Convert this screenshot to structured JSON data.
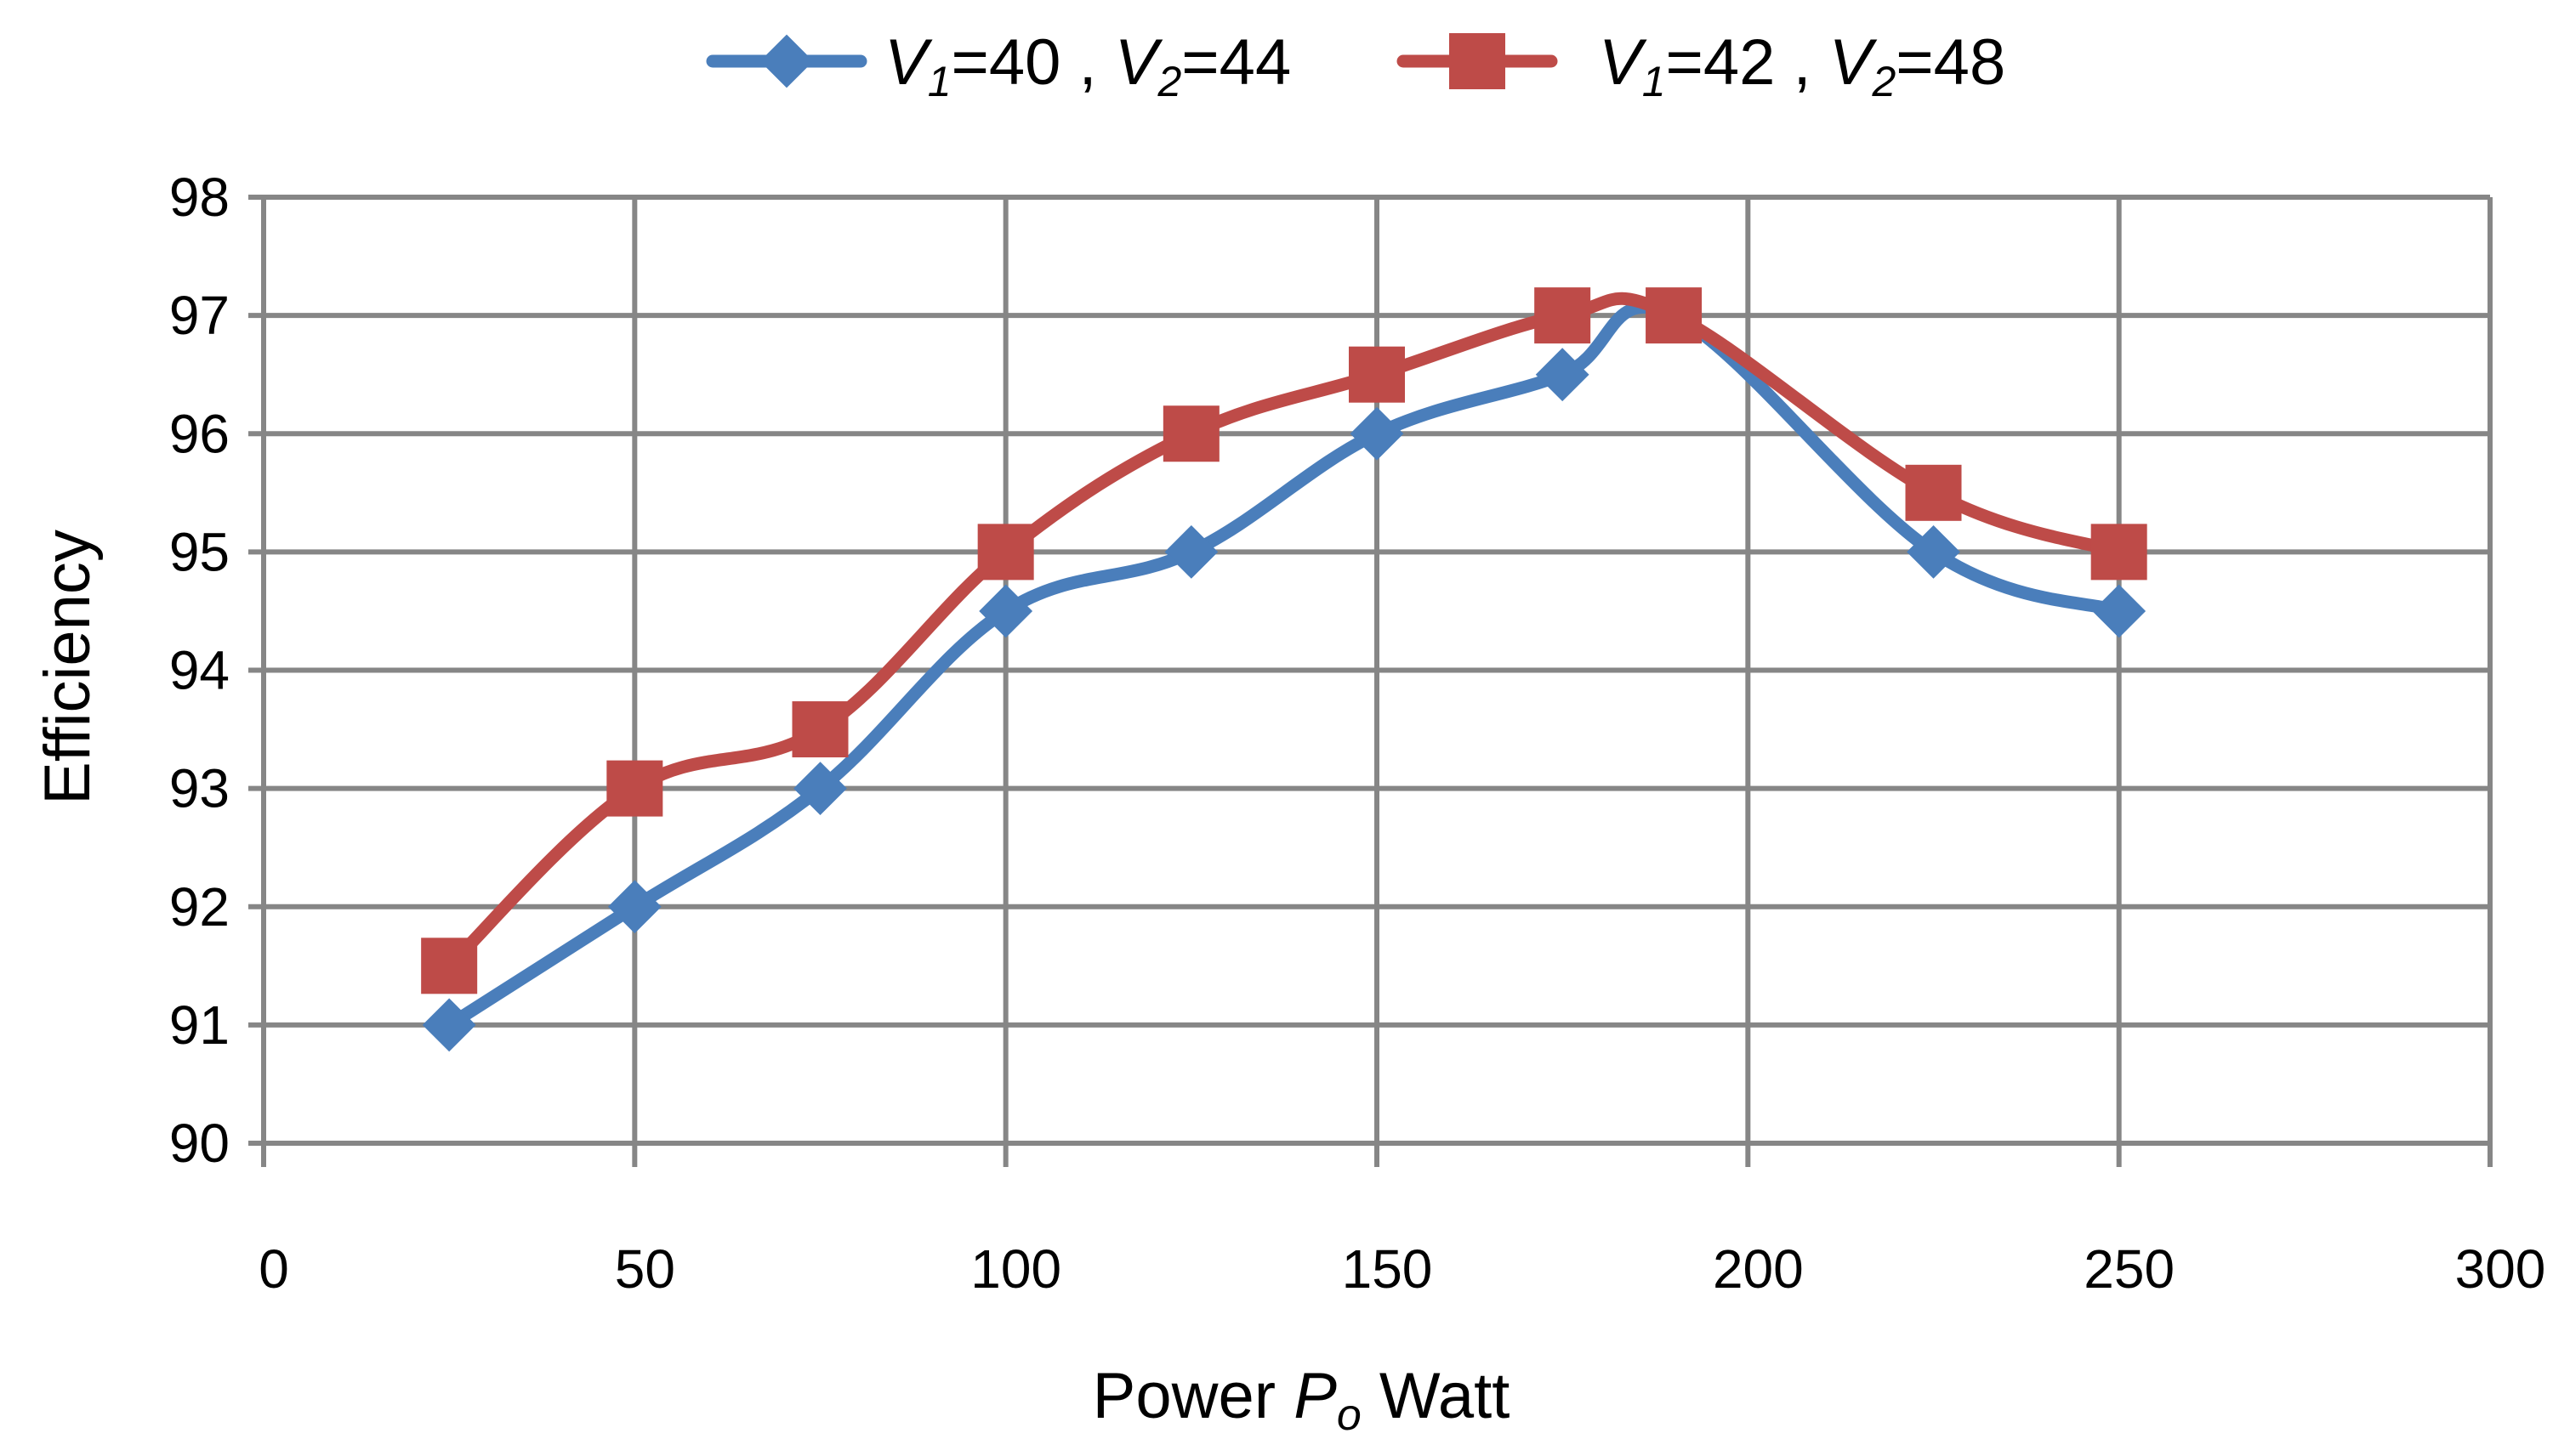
{
  "chart_data": {
    "type": "line",
    "title": "",
    "xlabel": "Power P_o Watt",
    "xlabel_parts": {
      "prefix": "Power ",
      "symbol": "P",
      "subscript": "o",
      "suffix": " Watt"
    },
    "ylabel": "Efficiency",
    "xlim": [
      0,
      300
    ],
    "ylim": [
      90,
      98
    ],
    "xticks": [
      0,
      50,
      100,
      150,
      200,
      250,
      300
    ],
    "yticks": [
      90,
      91,
      92,
      93,
      94,
      95,
      96,
      97,
      98
    ],
    "grid": true,
    "legend_position": "top",
    "series": [
      {
        "name": "V1=40 , V2=44",
        "legend": {
          "a_sym": "V",
          "a_sub": "1",
          "a_val": "=40 , ",
          "b_sym": "V",
          "b_sub": "2",
          "b_val": "=44"
        },
        "color": "#4a7ebb",
        "marker": "diamond",
        "x": [
          25,
          50,
          75,
          100,
          125,
          150,
          175,
          190,
          225,
          250
        ],
        "y": [
          91.0,
          92.0,
          93.0,
          94.5,
          95.0,
          96.0,
          96.5,
          97.0,
          95.0,
          94.5
        ]
      },
      {
        "name": "V1=42 , V2=48",
        "legend": {
          "a_sym": "V",
          "a_sub": "1",
          "a_val": "=42 , ",
          "b_sym": "V",
          "b_sub": "2",
          "b_val": "=48"
        },
        "color": "#be4b48",
        "marker": "square",
        "x": [
          25,
          50,
          75,
          100,
          125,
          150,
          175,
          190,
          225,
          250
        ],
        "y": [
          91.5,
          93.0,
          93.5,
          95.0,
          96.0,
          96.5,
          97.0,
          97.0,
          95.5,
          95.0
        ]
      }
    ]
  }
}
